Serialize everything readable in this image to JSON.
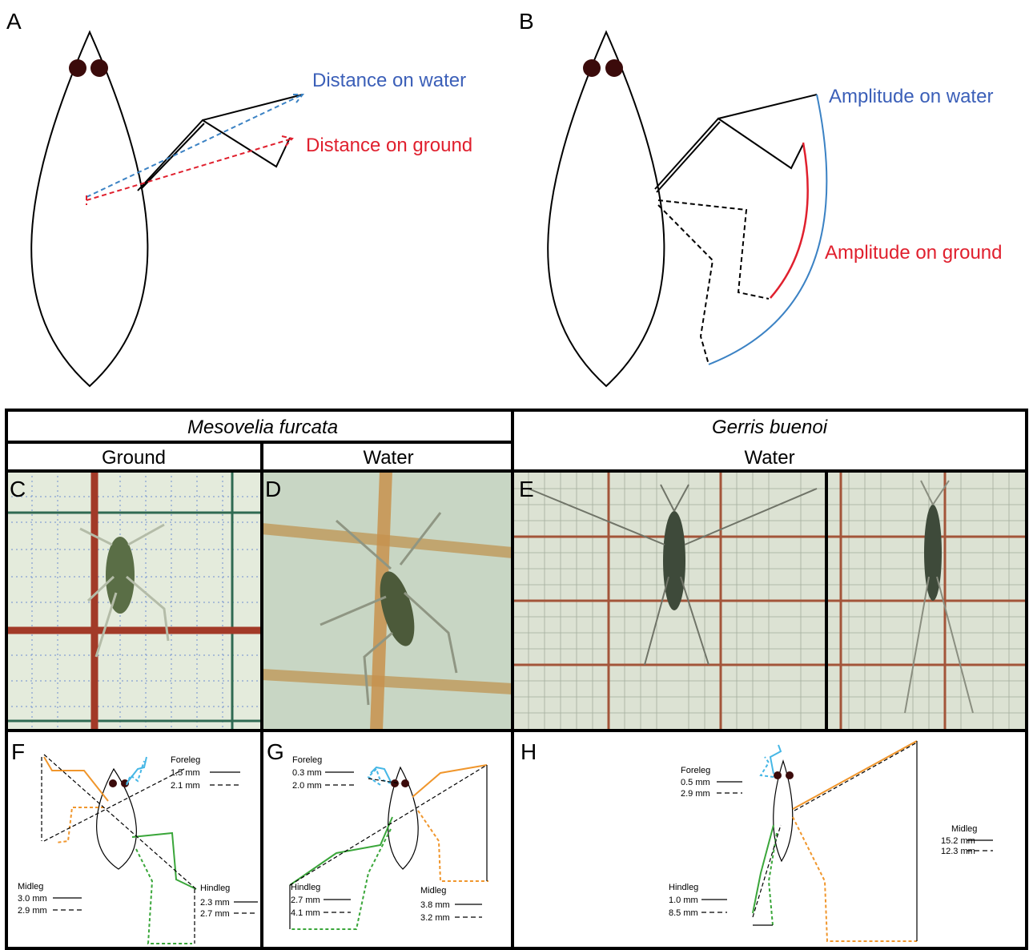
{
  "panel_a": {
    "label": "A",
    "distance_water": "Distance on water",
    "distance_ground": "Distance on ground"
  },
  "panel_b": {
    "label": "B",
    "amplitude_water": "Amplitude on water",
    "amplitude_ground": "Amplitude on ground"
  },
  "table": {
    "species": [
      "Mesovelia furcata",
      "Gerris buenoi"
    ],
    "substrates": [
      "Ground",
      "Water",
      "Water"
    ],
    "photo_labels": [
      "C",
      "D",
      "E"
    ]
  },
  "panels": [
    {
      "label": "F",
      "legends": [
        {
          "name": "Foreleg",
          "solid": "1.5 mm",
          "dashed": "2.1 mm"
        },
        {
          "name": "Midleg",
          "solid": "3.0 mm",
          "dashed": "2.9 mm"
        },
        {
          "name": "Hindleg",
          "solid": "2.3 mm",
          "dashed": "2.7 mm"
        }
      ]
    },
    {
      "label": "G",
      "legends": [
        {
          "name": "Foreleg",
          "solid": "0.3 mm",
          "dashed": "2.0 mm"
        },
        {
          "name": "Midleg",
          "solid": "3.8 mm",
          "dashed": "3.2 mm"
        },
        {
          "name": "Hindleg",
          "solid": "2.7 mm",
          "dashed": "4.1 mm"
        }
      ]
    },
    {
      "label": "H",
      "legends": [
        {
          "name": "Foreleg",
          "solid": "0.5 mm",
          "dashed": "2.9 mm"
        },
        {
          "name": "Midleg",
          "solid": "15.2 mm",
          "dashed": "12.3 mm"
        },
        {
          "name": "Hindleg",
          "solid": "1.0 mm",
          "dashed": "8.5 mm"
        }
      ]
    }
  ]
}
